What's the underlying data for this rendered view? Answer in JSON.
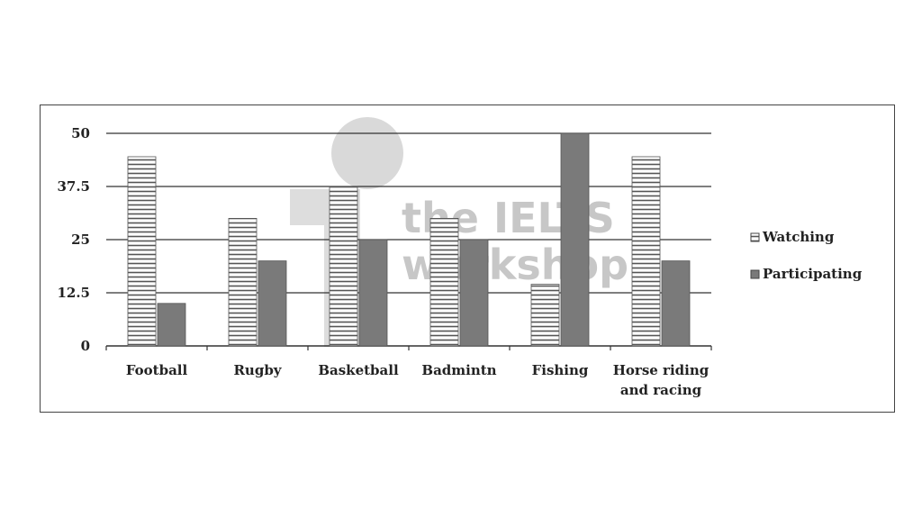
{
  "chart_data": {
    "type": "bar",
    "categories": [
      "Football",
      "Rugby",
      "Basketball",
      "Badmintn",
      "Fishing",
      "Horse riding and racing"
    ],
    "category_lines": [
      [
        "Football"
      ],
      [
        "Rugby"
      ],
      [
        "Basketball"
      ],
      [
        "Badmintn"
      ],
      [
        "Fishing"
      ],
      [
        "Horse riding",
        "and racing"
      ]
    ],
    "series": [
      {
        "name": "Watching",
        "values": [
          44.5,
          30,
          37.5,
          30,
          14.5,
          44.5
        ],
        "pattern": "horizontal-stripes"
      },
      {
        "name": "Participating",
        "values": [
          10,
          20,
          25,
          25,
          50,
          20
        ],
        "pattern": "solid-gray"
      }
    ],
    "yticks": [
      "0",
      "12.5",
      "25",
      "37.5",
      "50"
    ],
    "ytick_values": [
      0,
      12.5,
      25,
      37.5,
      50
    ],
    "ylim": [
      0,
      50
    ],
    "grid": true,
    "legend_position": "right",
    "title": "",
    "xlabel": "",
    "ylabel": ""
  },
  "legend": {
    "items": [
      "Watching",
      "Participating"
    ]
  },
  "watermark": {
    "line1": "the IELTS",
    "line2": "workshop"
  },
  "colors": {
    "participating_fill": "#7a7a7a",
    "watching_fill": "#ffffff",
    "stripe": "#555555",
    "grid": "#333333",
    "watermark": "#9a9a9a"
  }
}
